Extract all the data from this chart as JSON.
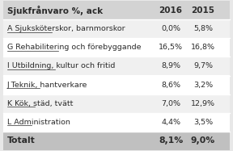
{
  "title": "Sjukfrånvaro %, ack",
  "col2016": "2016",
  "col2015": "2015",
  "rows": [
    {
      "label": "A Sjuksköterskor, barnmorskor",
      "v2016": "0,0%",
      "v2015": "5,8%"
    },
    {
      "label": "G Rehabilitering och förebyggande",
      "v2016": "16,5%",
      "v2015": "16,8%"
    },
    {
      "label": "I Utbildning, kultur och fritid",
      "v2016": "8,9%",
      "v2015": "9,7%"
    },
    {
      "label": "J Teknik, hantverkare",
      "v2016": "8,6%",
      "v2015": "3,2%"
    },
    {
      "label": "K Kök, städ, tvätt",
      "v2016": "7,0%",
      "v2015": "12,9%"
    },
    {
      "label": "L Administration",
      "v2016": "4,4%",
      "v2015": "3,5%"
    }
  ],
  "total_label": "Totalt",
  "total_2016": "8,1%",
  "total_2015": "9,0%",
  "header_bg": "#d3d3d3",
  "row_bg_odd": "#f0f0f0",
  "row_bg_even": "#ffffff",
  "total_bg": "#c0c0c0",
  "border_color": "#ffffff",
  "text_color": "#2b2b2b",
  "underline_color": "#2b2b2b",
  "header_fontsize": 7.5,
  "row_fontsize": 6.8,
  "total_fontsize": 7.8
}
